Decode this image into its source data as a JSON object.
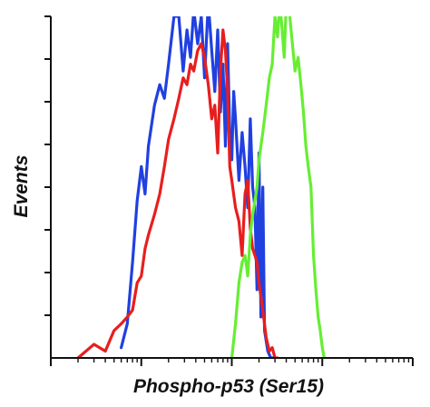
{
  "chart_data": {
    "type": "line",
    "title": "",
    "xlabel": "Phospho-p53 (Ser15)",
    "ylabel": "Events",
    "x_scale": "log",
    "xlim": [
      10,
      100000
    ],
    "ylim": [
      0,
      100
    ],
    "grid": false,
    "legend": "none",
    "series": [
      {
        "color": "#2040e0",
        "x": [
          60,
          70,
          80,
          90,
          100,
          110,
          120,
          140,
          160,
          180,
          200,
          230,
          260,
          290,
          320,
          350,
          380,
          420,
          460,
          500,
          550,
          600,
          650,
          700,
          750,
          800,
          850,
          900,
          950,
          1000,
          1050,
          1100,
          1200,
          1300,
          1400,
          1500,
          1600,
          1700,
          1800,
          1900,
          2000,
          2100,
          2200,
          2300,
          2500,
          2700,
          2900,
          3000
        ],
        "y": [
          3,
          10,
          28,
          46,
          56,
          48,
          62,
          74,
          80,
          76,
          86,
          100,
          100,
          84,
          96,
          88,
          102,
          92,
          100,
          82,
          104,
          90,
          78,
          96,
          72,
          86,
          62,
          92,
          66,
          58,
          78,
          70,
          52,
          66,
          56,
          44,
          70,
          50,
          44,
          20,
          60,
          12,
          50,
          8,
          2,
          0,
          0,
          0
        ]
      },
      {
        "color": "#e81e1e",
        "x": [
          20,
          30,
          40,
          50,
          60,
          70,
          80,
          90,
          100,
          110,
          120,
          140,
          160,
          180,
          200,
          230,
          260,
          290,
          320,
          350,
          380,
          420,
          460,
          500,
          550,
          600,
          650,
          700,
          750,
          800,
          850,
          900,
          950,
          1000,
          1100,
          1200,
          1300,
          1400,
          1500,
          1600,
          1700,
          1800,
          1900,
          2000,
          2200,
          2400,
          2600,
          2800,
          3000,
          3200
        ],
        "y": [
          0,
          4,
          2,
          8,
          10,
          12,
          14,
          22,
          24,
          32,
          36,
          42,
          48,
          56,
          64,
          70,
          76,
          82,
          80,
          86,
          84,
          90,
          92,
          88,
          80,
          70,
          74,
          60,
          84,
          96,
          90,
          78,
          56,
          52,
          44,
          40,
          30,
          48,
          52,
          38,
          32,
          30,
          28,
          22,
          14,
          6,
          2,
          3,
          0,
          0
        ]
      },
      {
        "color": "#66ee33",
        "x": [
          1000,
          1100,
          1200,
          1300,
          1400,
          1500,
          1600,
          1700,
          1800,
          1900,
          2000,
          2200,
          2400,
          2600,
          2800,
          3000,
          3200,
          3400,
          3600,
          3800,
          4000,
          4300,
          4600,
          5000,
          5400,
          5800,
          6200,
          6600,
          7000,
          7500,
          8000,
          8500,
          9000,
          9500,
          10000,
          10500
        ],
        "y": [
          0,
          10,
          22,
          28,
          30,
          24,
          36,
          42,
          46,
          50,
          58,
          66,
          74,
          82,
          86,
          100,
          94,
          104,
          96,
          88,
          104,
          102,
          94,
          84,
          88,
          80,
          72,
          62,
          56,
          50,
          30,
          20,
          12,
          8,
          3,
          0
        ]
      }
    ]
  }
}
